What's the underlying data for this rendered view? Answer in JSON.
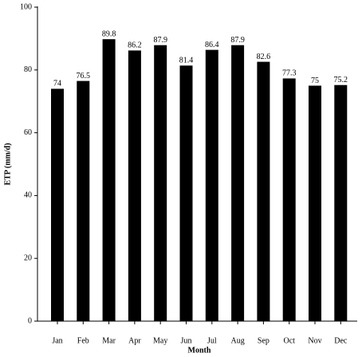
{
  "chart_data": {
    "type": "bar",
    "x_label": "Month",
    "y_label": "ETP (mm/d)",
    "categories": [
      "Jan",
      "Feb",
      "Mar",
      "Apr",
      "May",
      "Jun",
      "Jul",
      "Aug",
      "Sep",
      "Oct",
      "Nov",
      "Dec"
    ],
    "values": [
      74,
      76.5,
      89.8,
      86.2,
      87.9,
      81.4,
      86.4,
      87.9,
      82.6,
      77.3,
      75,
      75.2
    ],
    "color": "#000000",
    "ylim": [
      0,
      100
    ],
    "yticks": [
      0,
      20,
      40,
      60,
      80,
      100
    ],
    "grid": false
  }
}
